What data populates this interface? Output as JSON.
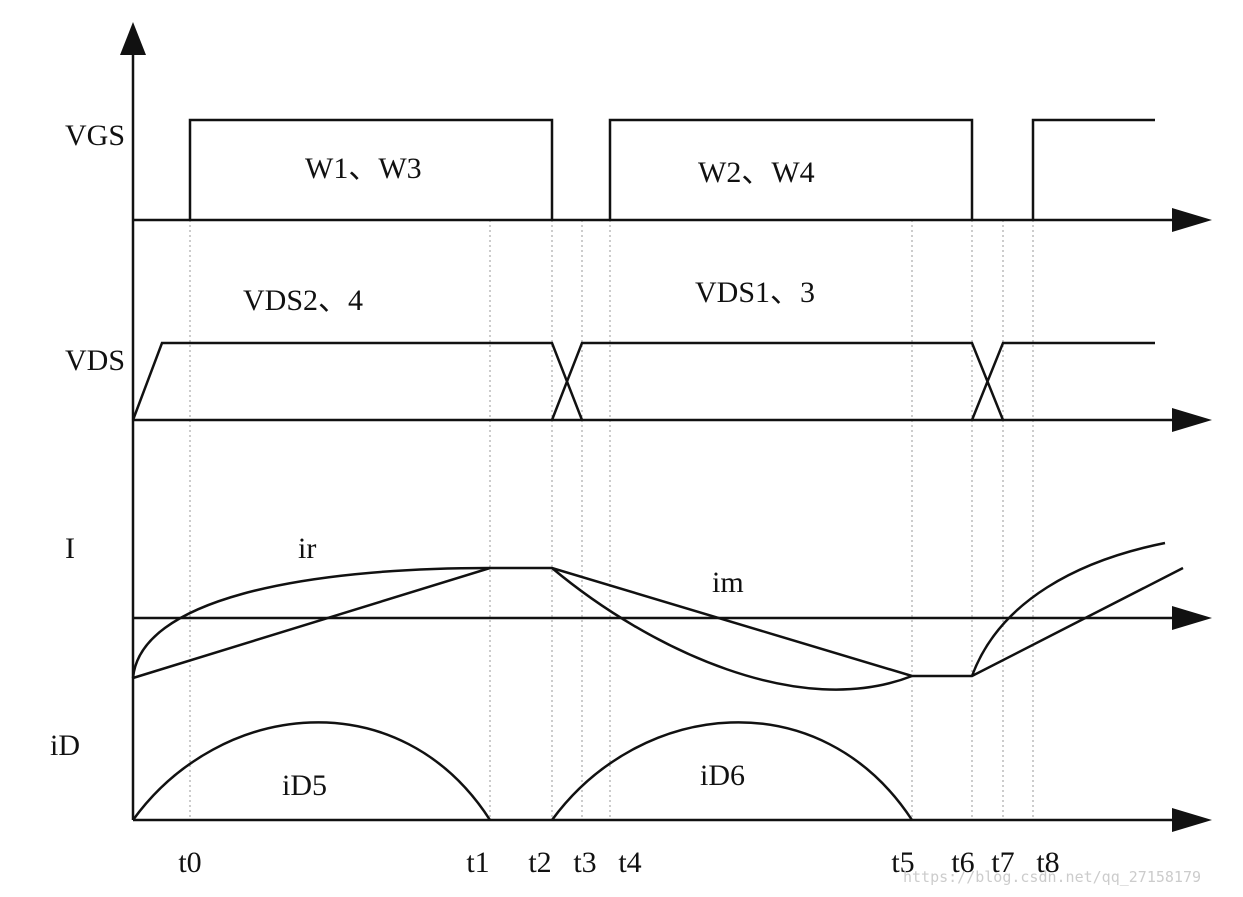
{
  "axes": {
    "vgs": "VGS",
    "vds": "VDS",
    "i": "I",
    "id": "iD"
  },
  "annotations": {
    "w13": "W1、W3",
    "w24": "W2、W4",
    "vds24": "VDS2、4",
    "vds13": "VDS1、3",
    "ir": "ir",
    "im": "im",
    "id5": "iD5",
    "id6": "iD6"
  },
  "times": [
    "t0",
    "t1",
    "t2",
    "t3",
    "t4",
    "t5",
    "t6",
    "t7",
    "t8"
  ],
  "watermark": "https://blog.csdn.net/qq_27158179"
}
